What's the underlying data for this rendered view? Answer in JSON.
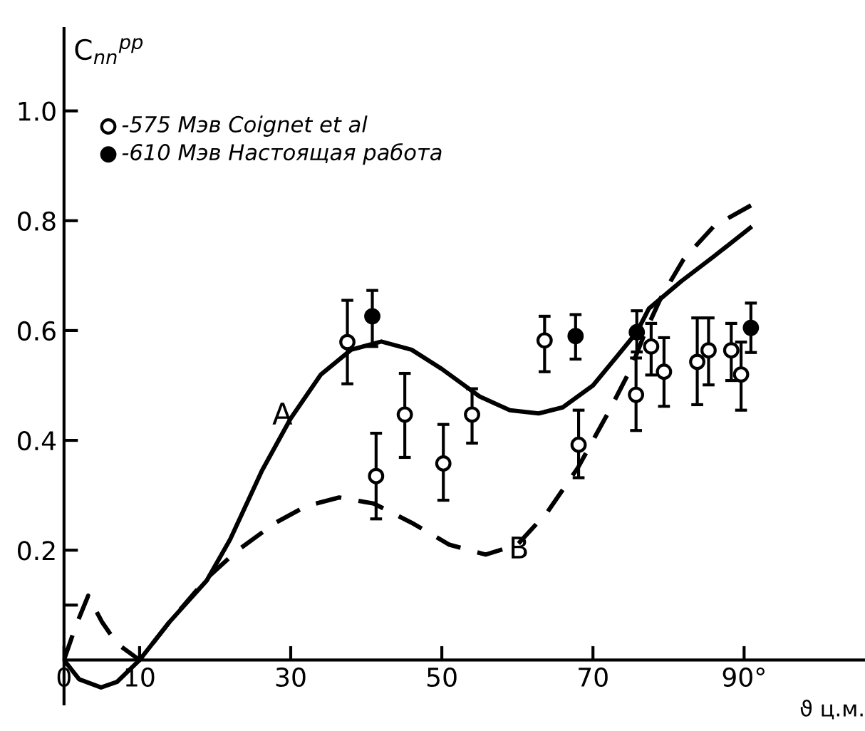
{
  "chart_data": {
    "type": "line",
    "ylabel": "C$_{nn}$$^{pp}$",
    "xlabel": "ϑ ц.м.",
    "xlim": [
      0,
      106
    ],
    "ylim": [
      -0.08,
      1.15
    ],
    "xticks": [
      {
        "value": 0,
        "label": "0"
      },
      10,
      30,
      50,
      70,
      {
        "value": 90,
        "label": "90°"
      }
    ],
    "yticks": [
      {
        "value": 0.1,
        "label": null
      },
      0.2,
      0.4,
      0.6,
      0.8,
      {
        "value": 1.0,
        "label": "1.0"
      }
    ],
    "legend": "top left",
    "annotations": [
      {
        "text": "A",
        "x": 28.9,
        "y": 0.444
      },
      {
        "text": "B",
        "x": 60.2,
        "y": 0.2
      }
    ],
    "series": [
      {
        "color": "#000000",
        "line_style": "solid",
        "x": [
          0,
          2,
          4.9,
          7,
          10,
          14,
          18.9,
          22,
          26.2,
          30,
          34,
          38,
          42,
          46,
          50,
          55,
          59,
          62.8,
          66,
          70,
          73,
          75.8,
          77.4,
          81.7,
          86,
          90.8
        ],
        "values": [
          0,
          -0.035,
          -0.05,
          -0.04,
          0,
          0.07,
          0.145,
          0.22,
          0.345,
          0.44,
          0.52,
          0.565,
          0.58,
          0.565,
          0.53,
          0.48,
          0.455,
          0.449,
          0.46,
          0.5,
          0.55,
          0.597,
          0.64,
          0.69,
          0.735,
          0.787
        ]
      },
      {
        "color": "#000000",
        "line_style": "dashed",
        "x": [
          0,
          1.5,
          3.2,
          5,
          7,
          10,
          14,
          19,
          23,
          28,
          32,
          36.4,
          41,
          46,
          51,
          55.8,
          60,
          64,
          68,
          72,
          75,
          77,
          79,
          82,
          86,
          91.7
        ],
        "values": [
          0,
          0.06,
          0.117,
          0.07,
          0.03,
          0,
          0.07,
          0.15,
          0.2,
          0.25,
          0.28,
          0.296,
          0.285,
          0.25,
          0.21,
          0.192,
          0.21,
          0.27,
          0.35,
          0.45,
          0.53,
          0.6,
          0.66,
          0.73,
          0.79,
          0.834
        ]
      },
      {
        "type": "scatter",
        "name": "-575 Мэв Coignet et al",
        "color": "#ffffff",
        "marker": "circle",
        "x": [
          37.5,
          41.3,
          45.1,
          50.2,
          54,
          63.6,
          68.1,
          75.7,
          77.7,
          79.4,
          83.8,
          85.3,
          88.3,
          89.6
        ],
        "values": [
          0.579,
          0.335,
          0.447,
          0.358,
          0.447,
          0.582,
          0.392,
          0.483,
          0.571,
          0.525,
          0.543,
          0.564,
          0.564,
          0.52
        ],
        "errors": [
          [
            0.503,
            0.655
          ],
          [
            0.257,
            0.413
          ],
          [
            0.369,
            0.522
          ],
          [
            0.291,
            0.429
          ],
          [
            0.395,
            0.494
          ],
          [
            0.525,
            0.626
          ],
          [
            0.332,
            0.455
          ],
          [
            0.418,
            0.55
          ],
          [
            0.519,
            0.613
          ],
          [
            0.462,
            0.587
          ],
          [
            0.465,
            0.623
          ],
          [
            0.501,
            0.623
          ],
          [
            0.509,
            0.613
          ],
          [
            0.455,
            0.579
          ]
        ]
      },
      {
        "type": "scatter",
        "name": "-610 Мэв Настоящая работа",
        "color": "#000000",
        "marker": "circle",
        "x": [
          40.8,
          67.7,
          75.8,
          90.9
        ],
        "values": [
          0.626,
          0.59,
          0.597,
          0.605
        ],
        "errors": [
          [
            0.571,
            0.673
          ],
          [
            0.548,
            0.629
          ],
          [
            0.561,
            0.636
          ],
          [
            0.56,
            0.65
          ]
        ]
      }
    ]
  }
}
